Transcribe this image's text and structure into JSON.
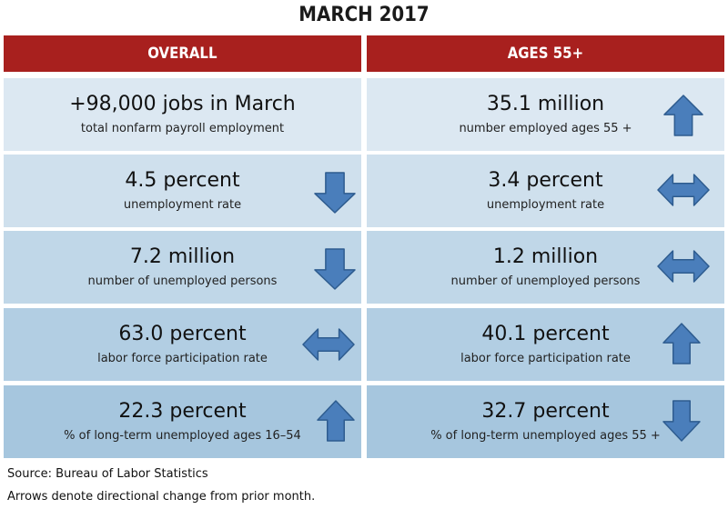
{
  "title": "MARCH 2017",
  "columns": {
    "left": "OVERALL",
    "right": "AGES 55+"
  },
  "overall": [
    {
      "value": "+98,000 jobs in March",
      "label": "total nonfarm payroll employment",
      "arrow": "none"
    },
    {
      "value": "4.5 percent",
      "label": "unemployment rate",
      "arrow": "down"
    },
    {
      "value": "7.2 million",
      "label": "number of unemployed persons",
      "arrow": "down"
    },
    {
      "value": "63.0 percent",
      "label": "labor force participation rate",
      "arrow": "left-right"
    },
    {
      "value": "22.3 percent",
      "label": "% of long-term unemployed ages 16–54",
      "arrow": "up"
    }
  ],
  "ages55": [
    {
      "value": "35.1 million",
      "label": "number employed ages 55 +",
      "arrow": "up"
    },
    {
      "value": "3.4 percent",
      "label": "unemployment rate",
      "arrow": "left-right"
    },
    {
      "value": "1.2 million",
      "label": "number of unemployed persons",
      "arrow": "left-right"
    },
    {
      "value": "40.1 percent",
      "label": "labor force participation rate",
      "arrow": "up"
    },
    {
      "value": "32.7 percent",
      "label": "% of long-term unemployed ages 55 +",
      "arrow": "down"
    }
  ],
  "row_colors": [
    "#dce8f2",
    "#cfe0ed",
    "#c0d7e8",
    "#b2cee3",
    "#a6c6de"
  ],
  "arrow_fill": "#4a7ebb",
  "arrow_stroke": "#2e5c8f",
  "source": "Source: Bureau of Labor Statistics",
  "note": "Arrows denote directional change from prior month."
}
